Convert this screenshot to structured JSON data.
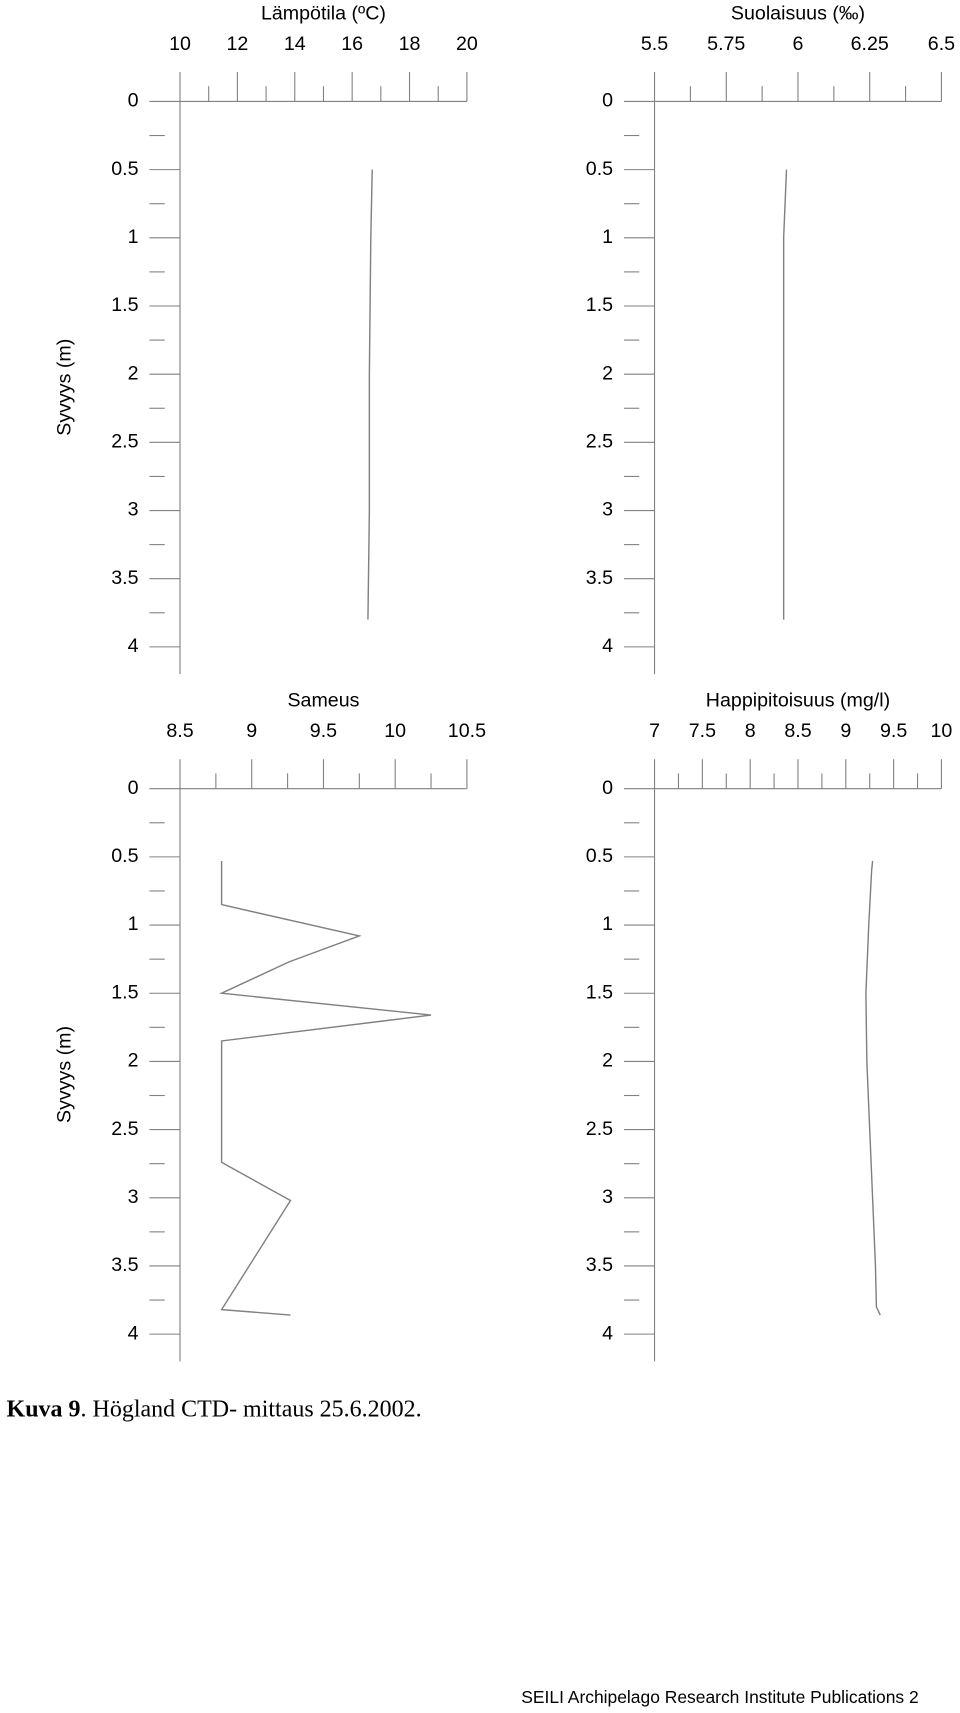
{
  "chart_data": [
    {
      "type": "line",
      "title": "Lämpötila (ºC)",
      "ylabel": "Syvyys (m)",
      "x": [
        0.5,
        1,
        2,
        3,
        3.8
      ],
      "values": [
        16.7,
        16.65,
        16.6,
        16.6,
        16.55
      ],
      "xlim": [
        10,
        20
      ],
      "xticks": [
        10,
        12,
        14,
        16,
        18,
        20
      ],
      "ylim": [
        0,
        4
      ],
      "yticks": [
        0,
        0.5,
        1,
        1.5,
        2,
        2.5,
        3,
        3.5,
        4
      ],
      "color": "#808080"
    },
    {
      "type": "line",
      "title": "Suolaisuus (‰)",
      "x": [
        0.5,
        1,
        2,
        3,
        3.8
      ],
      "values": [
        5.96,
        5.95,
        5.95,
        5.95,
        5.95
      ],
      "xlim": [
        5.5,
        6.5
      ],
      "xticks": [
        5.5,
        5.75,
        6,
        6.25,
        6.5
      ],
      "ylim": [
        0,
        4
      ],
      "yticks": [
        0,
        0.5,
        1,
        1.5,
        2,
        2.5,
        3,
        3.5,
        4
      ],
      "color": "#808080"
    },
    {
      "type": "line",
      "title": "Sameus",
      "ylabel": "Syvyys (m)",
      "x": [
        0.53,
        0.85,
        1.08,
        1.27,
        1.5,
        1.66,
        1.85,
        2.74,
        3.02,
        3.82,
        3.86
      ],
      "values": [
        8.79,
        8.79,
        9.75,
        9.26,
        8.79,
        10.25,
        8.79,
        8.79,
        9.27,
        8.79,
        9.27
      ],
      "xlim": [
        8.5,
        10.5
      ],
      "xticks": [
        8.5,
        9,
        9.5,
        10,
        10.5
      ],
      "ylim": [
        0,
        4
      ],
      "yticks": [
        0,
        0.5,
        1,
        1.5,
        2,
        2.5,
        3,
        3.5,
        4
      ],
      "color": "#808080"
    },
    {
      "type": "line",
      "title": "Happipitoisuus (mg/l)",
      "x": [
        0.53,
        0.6,
        1,
        1.5,
        2,
        2.5,
        3,
        3.5,
        3.8,
        3.86
      ],
      "values": [
        9.28,
        9.27,
        9.24,
        9.21,
        9.22,
        9.25,
        9.28,
        9.31,
        9.32,
        9.36
      ],
      "xlim": [
        7,
        10
      ],
      "xticks": [
        7,
        7.5,
        8,
        8.5,
        9,
        9.5,
        10
      ],
      "ylim": [
        0,
        4
      ],
      "yticks": [
        0,
        0.5,
        1,
        1.5,
        2,
        2.5,
        3,
        3.5,
        4
      ],
      "color": "#808080"
    }
  ],
  "caption": {
    "label": "Kuva 9",
    "text": ". Högland CTD- mittaus 25.6.2002."
  },
  "footer": "SEILI Archipelago Research Institute Publications 2"
}
